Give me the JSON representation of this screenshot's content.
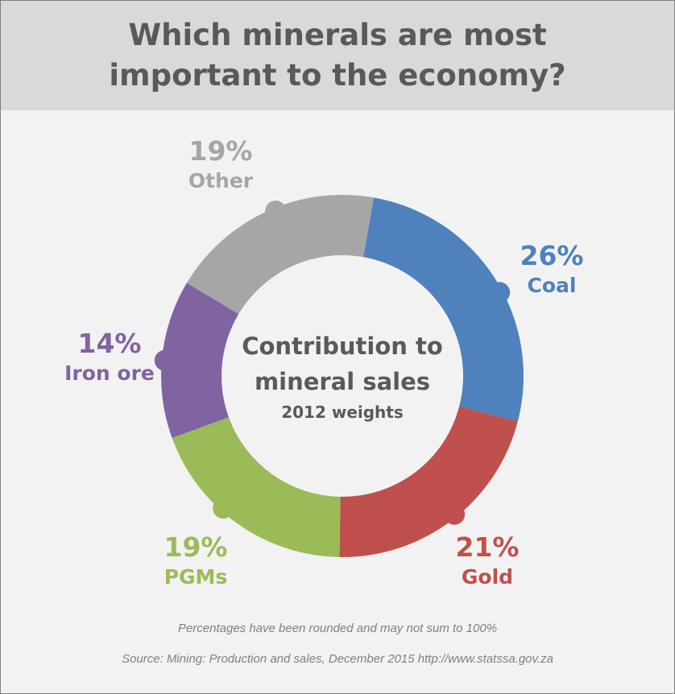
{
  "header": {
    "title_line1": "Which minerals are most",
    "title_line2": "important to the economy?"
  },
  "chart_data": {
    "type": "pie",
    "subtype": "donut",
    "center_title": "Contribution to mineral sales",
    "center_title_line1": "Contribution to",
    "center_title_line2": "mineral sales",
    "center_subtitle": "2012 weights",
    "unit": "%",
    "slices": [
      {
        "label": "Coal",
        "value": 26,
        "value_label": "26%",
        "color": "#4f81bd"
      },
      {
        "label": "Gold",
        "value": 21,
        "value_label": "21%",
        "color": "#c0504d"
      },
      {
        "label": "PGMs",
        "value": 19,
        "value_label": "19%",
        "color": "#9bbb59"
      },
      {
        "label": "Iron ore",
        "value": 14,
        "value_label": "14%",
        "color": "#8064a2"
      },
      {
        "label": "Other",
        "value": 19,
        "value_label": "19%",
        "color": "#a6a6a6"
      }
    ]
  },
  "footer": {
    "note": "Percentages have been rounded and may not sum to 100%",
    "source": "Source: Mining: Production and sales, December 2015   http://www.statssa.gov.za"
  }
}
